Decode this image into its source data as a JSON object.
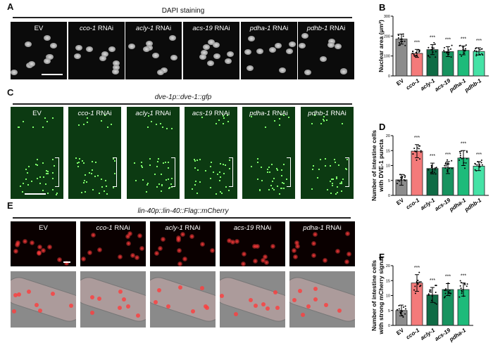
{
  "panels": {
    "A": {
      "label": "A",
      "header": "DAPI staining",
      "titles": [
        {
          "gene": "",
          "suffix": "EV"
        },
        {
          "gene": "cco-1",
          "suffix": " RNAi"
        },
        {
          "gene": "acly-1",
          "suffix": " RNAi"
        },
        {
          "gene": "acs-19",
          "suffix": " RNAi"
        },
        {
          "gene": "pdha-1",
          "suffix": " RNAi"
        },
        {
          "gene": "pdhb-1",
          "suffix": " RNAi"
        }
      ]
    },
    "C": {
      "label": "C",
      "header": "dve-1p::dve-1::gfp",
      "titles": [
        {
          "gene": "",
          "suffix": "EV"
        },
        {
          "gene": "cco-1",
          "suffix": " RNAi"
        },
        {
          "gene": "acly-1",
          "suffix": " RNAi"
        },
        {
          "gene": "acs-19",
          "suffix": " RNAi"
        },
        {
          "gene": "pdha-1",
          "suffix": " RNAi"
        },
        {
          "gene": "pdhb-1",
          "suffix": " RNAi"
        }
      ]
    },
    "E": {
      "label": "E",
      "header": "lin-40p::lin-40::Flag::mCherry",
      "titles": [
        {
          "gene": "",
          "suffix": "EV"
        },
        {
          "gene": "cco-1",
          "suffix": " RNAi"
        },
        {
          "gene": "acly-1",
          "suffix": " RNAi"
        },
        {
          "gene": "acs-19",
          "suffix": " RNAi"
        },
        {
          "gene": "pdha-1",
          "suffix": " RNAi"
        }
      ]
    }
  },
  "colors": {
    "EV": "#8c8c8c",
    "cco-1": "#f47a7a",
    "acly-1": "#0f6b45",
    "acs-19": "#17935f",
    "pdha-1": "#1dbb7a",
    "pdhb-1": "#45e2a6"
  },
  "chart_data": [
    {
      "id": "B",
      "label": "B",
      "type": "bar",
      "ylabel": "Nuclear area (μm²)",
      "ylim": [
        0,
        300
      ],
      "yticks": [
        0,
        100,
        200,
        300
      ],
      "categories": [
        "EV",
        "cco-1",
        "acly-1",
        "acs-19",
        "pdha-1",
        "pdhb-1"
      ],
      "values": [
        185,
        113,
        132,
        122,
        128,
        123
      ],
      "sd": [
        25,
        20,
        25,
        25,
        22,
        18
      ],
      "significance": [
        "",
        "***",
        "***",
        "***",
        "***",
        "***"
      ]
    },
    {
      "id": "D",
      "label": "D",
      "type": "bar",
      "ylabel": [
        "Number of intestine cells",
        "with DVE-1 puncta"
      ],
      "ylim": [
        0,
        20
      ],
      "yticks": [
        0,
        5,
        10,
        15,
        20
      ],
      "categories": [
        "EV",
        "cco-1",
        "acly-1",
        "acs-19",
        "pdha-1",
        "pdhb-1"
      ],
      "values": [
        5.2,
        14.8,
        9.0,
        9.3,
        12.5,
        9.8
      ],
      "sd": [
        1.8,
        2.2,
        1.8,
        2.0,
        2.5,
        1.5
      ],
      "significance": [
        "",
        "***",
        "***",
        "***",
        "***",
        "***"
      ]
    },
    {
      "id": "F",
      "label": "F",
      "type": "bar",
      "ylabel": [
        "Number of intestine cells",
        "with strong mCherry signal"
      ],
      "ylim": [
        0,
        20
      ],
      "yticks": [
        0,
        5,
        10,
        15,
        20
      ],
      "categories": [
        "EV",
        "cco-1",
        "acly-1",
        "acs-19",
        "pdha-1"
      ],
      "values": [
        5.0,
        14.2,
        10.2,
        12.0,
        12.0
      ],
      "sd": [
        1.8,
        2.8,
        2.5,
        2.0,
        2.2
      ],
      "significance": [
        "",
        "***",
        "***",
        "***",
        "***"
      ]
    }
  ]
}
